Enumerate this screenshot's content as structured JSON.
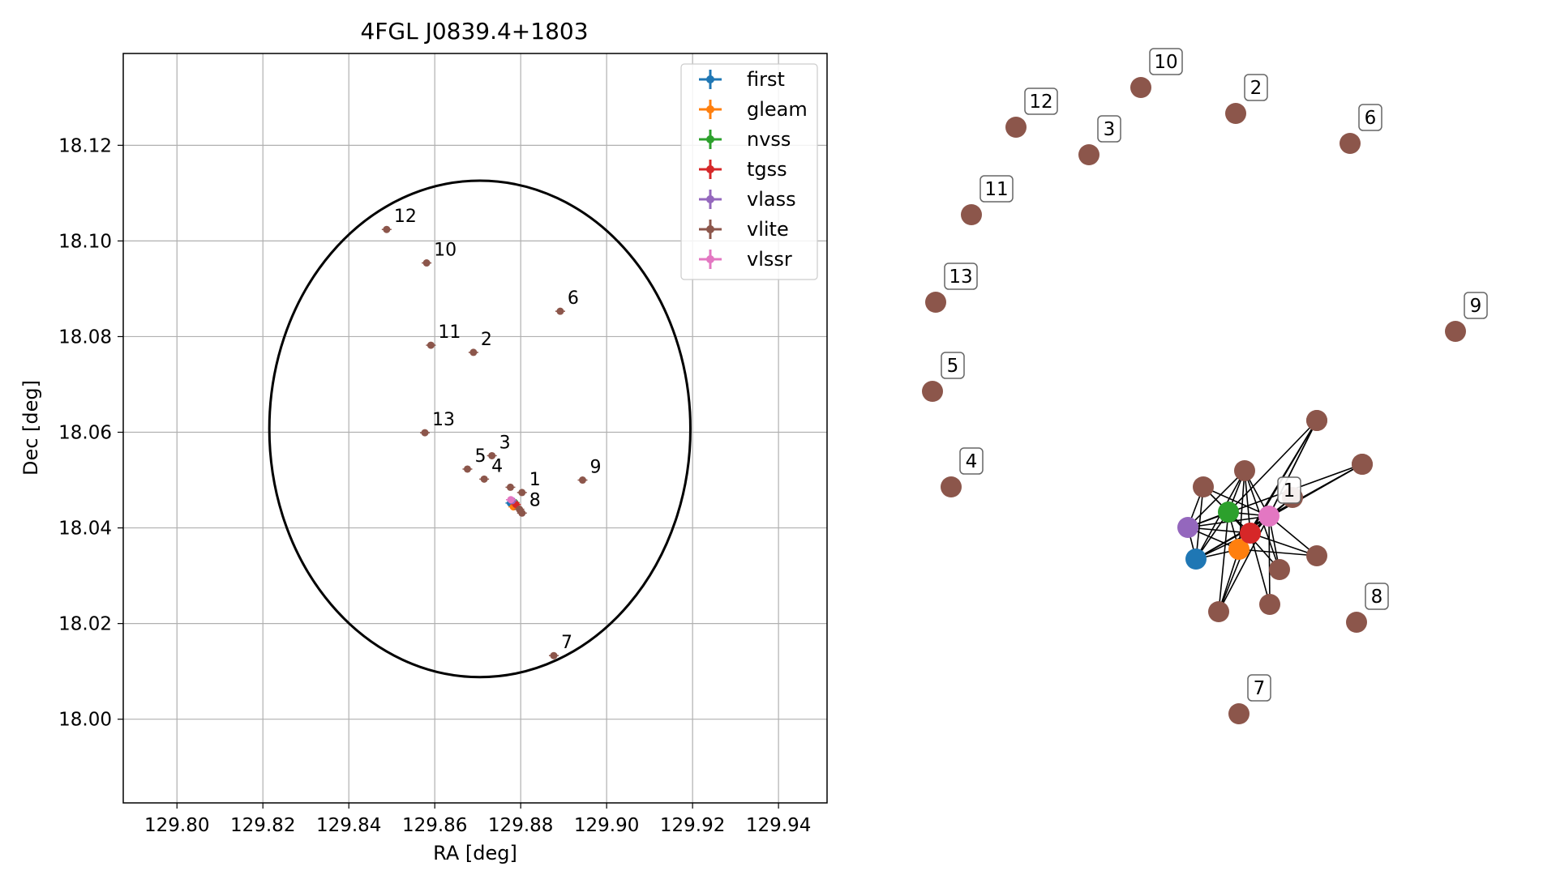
{
  "chart_data": [
    {
      "type": "scatter",
      "title": "4FGL J0839.4+1803",
      "xlabel": "RA [deg]",
      "ylabel": "Dec [deg]",
      "xlim": [
        129.7875,
        129.9513
      ],
      "ylim": [
        17.9825,
        18.1392
      ],
      "x_ticks": [
        "129.80",
        "129.82",
        "129.84",
        "129.86",
        "129.88",
        "129.90",
        "129.92",
        "129.94"
      ],
      "x_tick_values": [
        129.8,
        129.82,
        129.84,
        129.86,
        129.88,
        129.9,
        129.92,
        129.94
      ],
      "y_ticks": [
        "18.00",
        "18.02",
        "18.04",
        "18.06",
        "18.08",
        "18.10",
        "18.12"
      ],
      "y_tick_values": [
        18.0,
        18.02,
        18.04,
        18.06,
        18.08,
        18.1,
        18.12
      ],
      "grid": true,
      "legend_position": "top-right",
      "ellipse": {
        "center": [
          129.8705,
          18.0607
        ],
        "semi_axis_ra": 0.049,
        "semi_axis_dec": 0.0519,
        "color": "#000000"
      },
      "series": [
        {
          "name": "first",
          "color": "#1f77b4",
          "points": [
            {
              "x": 129.8776,
              "y": 18.0452
            }
          ]
        },
        {
          "name": "gleam",
          "color": "#ff7f0e",
          "points": [
            {
              "x": 129.8783,
              "y": 18.0444
            }
          ]
        },
        {
          "name": "nvss",
          "color": "#2ca02c",
          "points": [
            {
              "x": 129.8786,
              "y": 18.0453
            }
          ]
        },
        {
          "name": "tgss",
          "color": "#d62728",
          "points": [
            {
              "x": 129.8789,
              "y": 18.0449
            }
          ]
        },
        {
          "name": "vlass",
          "color": "#9467bd",
          "points": [
            {
              "x": 129.878,
              "y": 18.0457
            }
          ]
        },
        {
          "name": "vlite",
          "color": "#8c564b",
          "points": [
            {
              "x": 129.8803,
              "y": 18.0474,
              "label": "1"
            },
            {
              "x": 129.869,
              "y": 18.0767,
              "label": "2"
            },
            {
              "x": 129.8733,
              "y": 18.0551,
              "label": "3"
            },
            {
              "x": 129.8715,
              "y": 18.0502,
              "label": "4"
            },
            {
              "x": 129.8676,
              "y": 18.0523,
              "label": "5"
            },
            {
              "x": 129.8892,
              "y": 18.0853,
              "label": "6"
            },
            {
              "x": 129.8877,
              "y": 18.0133,
              "label": "7"
            },
            {
              "x": 129.8803,
              "y": 18.0431,
              "label": "8"
            },
            {
              "x": 129.8944,
              "y": 18.05,
              "label": "9"
            },
            {
              "x": 129.8581,
              "y": 18.0954,
              "label": "10"
            },
            {
              "x": 129.8591,
              "y": 18.0782,
              "label": "11"
            },
            {
              "x": 129.8488,
              "y": 18.1024,
              "label": "12"
            },
            {
              "x": 129.8577,
              "y": 18.0599,
              "label": "13"
            },
            {
              "x": 129.8776,
              "y": 18.0485
            },
            {
              "x": 129.8797,
              "y": 18.0439
            }
          ]
        },
        {
          "name": "vlssr",
          "color": "#e377c2",
          "points": [
            {
              "x": 129.8777,
              "y": 18.0459
            }
          ]
        }
      ]
    },
    {
      "type": "network",
      "nodes": [
        {
          "id": "first",
          "color": "#1f77b4",
          "label": ""
        },
        {
          "id": "gleam",
          "color": "#ff7f0e",
          "label": ""
        },
        {
          "id": "nvss",
          "color": "#2ca02c",
          "label": ""
        },
        {
          "id": "tgss",
          "color": "#d62728",
          "label": ""
        },
        {
          "id": "vlass",
          "color": "#9467bd",
          "label": ""
        },
        {
          "id": "vlssr",
          "color": "#e377c2",
          "label": "1"
        },
        {
          "id": "c1",
          "color": "#8c564b",
          "label": ""
        },
        {
          "id": "c2",
          "color": "#8c564b",
          "label": ""
        },
        {
          "id": "c3",
          "color": "#8c564b",
          "label": ""
        },
        {
          "id": "c4",
          "color": "#8c564b",
          "label": ""
        },
        {
          "id": "c5",
          "color": "#8c564b",
          "label": ""
        },
        {
          "id": "c6",
          "color": "#8c564b",
          "label": ""
        },
        {
          "id": "c7",
          "color": "#8c564b",
          "label": ""
        },
        {
          "id": "c8",
          "color": "#8c564b",
          "label": ""
        },
        {
          "id": "c9",
          "color": "#8c564b",
          "label": ""
        },
        {
          "id": "c10",
          "color": "#8c564b",
          "label": ""
        },
        {
          "id": "c11",
          "color": "#8c564b",
          "label": ""
        },
        {
          "id": "i2",
          "color": "#8c564b",
          "label": "2"
        },
        {
          "id": "i3",
          "color": "#8c564b",
          "label": "3"
        },
        {
          "id": "i4",
          "color": "#8c564b",
          "label": "4"
        },
        {
          "id": "i5",
          "color": "#8c564b",
          "label": "5"
        },
        {
          "id": "i6",
          "color": "#8c564b",
          "label": "6"
        },
        {
          "id": "i7",
          "color": "#8c564b",
          "label": "7"
        },
        {
          "id": "i8",
          "color": "#8c564b",
          "label": "8"
        },
        {
          "id": "i9",
          "color": "#8c564b",
          "label": "9"
        },
        {
          "id": "i10",
          "color": "#8c564b",
          "label": "10"
        },
        {
          "id": "i11",
          "color": "#8c564b",
          "label": "11"
        },
        {
          "id": "i12",
          "color": "#8c564b",
          "label": "12"
        },
        {
          "id": "i13",
          "color": "#8c564b",
          "label": "13"
        }
      ],
      "edges": [
        [
          "vlssr",
          "c1"
        ],
        [
          "vlssr",
          "c2"
        ],
        [
          "vlssr",
          "c3"
        ],
        [
          "vlssr",
          "c4"
        ],
        [
          "vlssr",
          "c5"
        ],
        [
          "vlssr",
          "c6"
        ],
        [
          "vlssr",
          "c7"
        ],
        [
          "vlssr",
          "c8"
        ],
        [
          "vlssr",
          "c9"
        ],
        [
          "vlssr",
          "c10"
        ],
        [
          "vlssr",
          "c11"
        ],
        [
          "vlssr",
          "first"
        ],
        [
          "vlssr",
          "gleam"
        ],
        [
          "vlssr",
          "nvss"
        ],
        [
          "vlssr",
          "tgss"
        ],
        [
          "vlssr",
          "vlass"
        ],
        [
          "first",
          "gleam"
        ],
        [
          "first",
          "nvss"
        ],
        [
          "first",
          "tgss"
        ],
        [
          "first",
          "vlass"
        ],
        [
          "gleam",
          "nvss"
        ],
        [
          "gleam",
          "tgss"
        ],
        [
          "gleam",
          "vlass"
        ],
        [
          "nvss",
          "tgss"
        ],
        [
          "nvss",
          "vlass"
        ],
        [
          "tgss",
          "vlass"
        ],
        [
          "first",
          "c1"
        ],
        [
          "first",
          "c2"
        ],
        [
          "first",
          "c9"
        ],
        [
          "gleam",
          "c2"
        ],
        [
          "gleam",
          "c6"
        ],
        [
          "gleam",
          "c7"
        ],
        [
          "gleam",
          "c8"
        ],
        [
          "nvss",
          "c1"
        ],
        [
          "nvss",
          "c2"
        ],
        [
          "nvss",
          "c7"
        ],
        [
          "nvss",
          "c8"
        ],
        [
          "nvss",
          "c10"
        ],
        [
          "tgss",
          "c2"
        ],
        [
          "tgss",
          "c3"
        ],
        [
          "tgss",
          "c6"
        ],
        [
          "tgss",
          "c7"
        ],
        [
          "tgss",
          "c8"
        ],
        [
          "tgss",
          "c11"
        ],
        [
          "vlass",
          "c1"
        ],
        [
          "vlass",
          "c2"
        ],
        [
          "vlass",
          "c9"
        ],
        [
          "c2",
          "c10"
        ]
      ]
    }
  ]
}
